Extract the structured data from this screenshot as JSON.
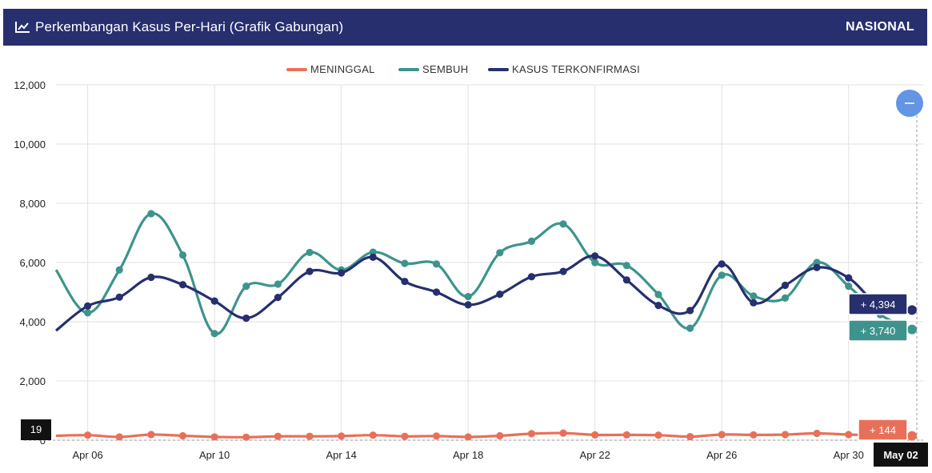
{
  "header": {
    "title": "Perkembangan Kasus Per-Hari (Grafik Gabungan)",
    "scope": "NASIONAL",
    "icon": "line-chart-icon"
  },
  "chart_data": {
    "type": "line",
    "x": [
      "Apr 05",
      "Apr 06",
      "Apr 07",
      "Apr 08",
      "Apr 09",
      "Apr 10",
      "Apr 11",
      "Apr 12",
      "Apr 13",
      "Apr 14",
      "Apr 15",
      "Apr 16",
      "Apr 17",
      "Apr 18",
      "Apr 19",
      "Apr 20",
      "Apr 21",
      "Apr 22",
      "Apr 23",
      "Apr 24",
      "Apr 25",
      "Apr 26",
      "Apr 27",
      "Apr 28",
      "Apr 29",
      "Apr 30",
      "May 01",
      "May 02"
    ],
    "xticks": [
      "Apr 06",
      "Apr 10",
      "Apr 14",
      "Apr 18",
      "Apr 22",
      "Apr 26",
      "Apr 30"
    ],
    "yticks": [
      "0",
      "2,000",
      "4,000",
      "6,000",
      "8,000",
      "10,000",
      "12,000"
    ],
    "ylim": [
      0,
      12000
    ],
    "grid": true,
    "legend_position": "top-center",
    "series": [
      {
        "name": "MENINGGAL",
        "color": "#e8705a",
        "values": [
          150,
          170,
          110,
          190,
          150,
          110,
          100,
          130,
          130,
          140,
          170,
          130,
          140,
          110,
          150,
          220,
          240,
          180,
          180,
          170,
          120,
          190,
          180,
          190,
          230,
          190,
          170,
          144
        ]
      },
      {
        "name": "SEMBUH",
        "color": "#3e948c",
        "values": [
          5750,
          4300,
          5750,
          7650,
          6250,
          3600,
          5200,
          5270,
          6340,
          5750,
          6350,
          5970,
          5950,
          4850,
          6330,
          6720,
          7300,
          6000,
          5900,
          4920,
          3780,
          5570,
          4870,
          4800,
          6000,
          5200,
          4240,
          3740
        ]
      },
      {
        "name": "KASUS TERKONFIRMASI",
        "color": "#272f6e",
        "values": [
          3700,
          4530,
          4830,
          5500,
          5250,
          4700,
          4120,
          4820,
          5700,
          5650,
          6180,
          5360,
          5000,
          4570,
          4930,
          5520,
          5700,
          6220,
          5410,
          4550,
          4380,
          5950,
          4640,
          5230,
          5830,
          5480,
          4510,
          4394
        ]
      }
    ],
    "annotations": {
      "meninggal_last": "+ 144",
      "sembuh_last": "+ 3,740",
      "kasus_last": "+ 4,394",
      "hover_date": "May 02",
      "left_value": "19"
    }
  }
}
